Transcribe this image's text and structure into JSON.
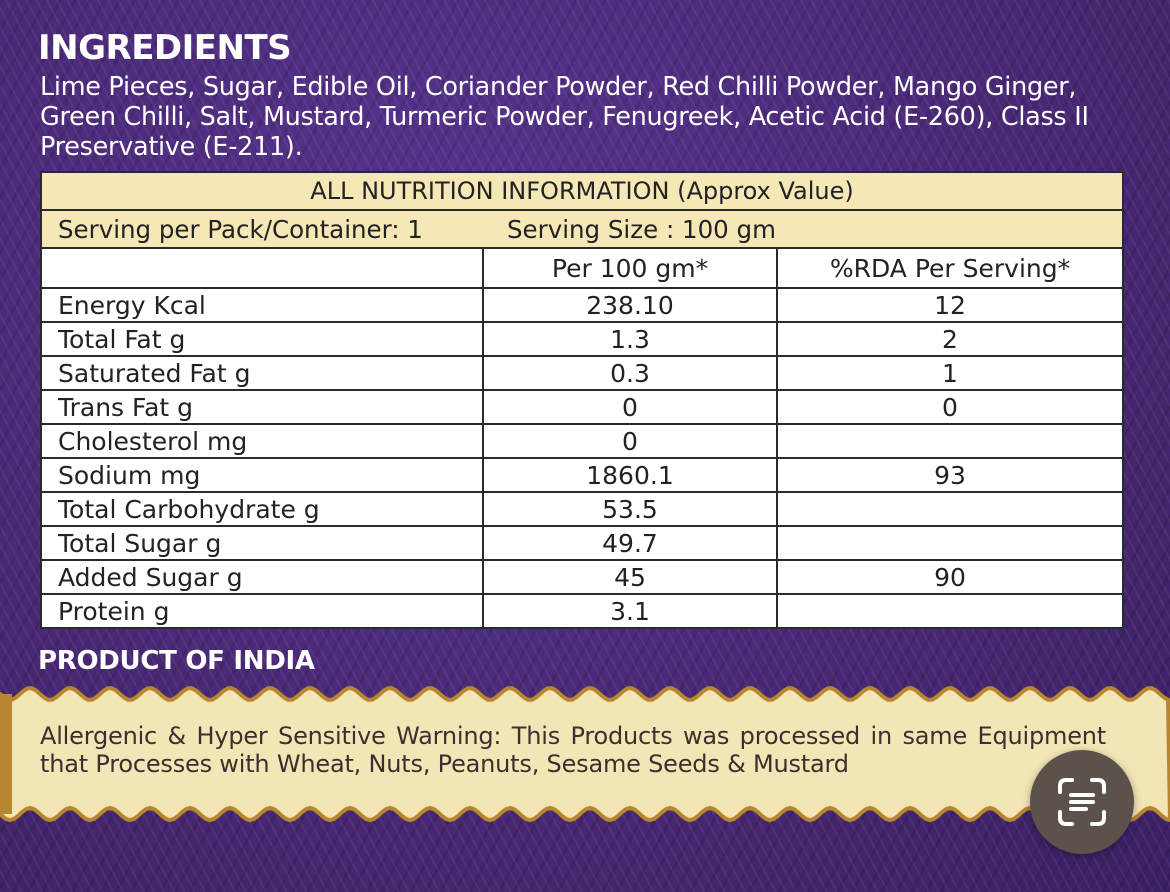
{
  "ingredients": {
    "title": "INGREDIENTS",
    "text": "Lime Pieces, Sugar, Edible Oil, Coriander Powder, Red Chilli Powder, Mango Ginger, Green Chilli, Salt, Mustard, Turmeric Powder, Fenugreek, Acetic Acid (E-260), Class II Preservative (E-211)."
  },
  "nutrition": {
    "title": "ALL NUTRITION INFORMATION (Approx Value)",
    "serving_per_pack": "Serving per Pack/Container: 1",
    "serving_size": "Serving Size : 100 gm",
    "columns": [
      "",
      "Per 100 gm*",
      "%RDA Per Serving*"
    ],
    "rows": [
      {
        "nutrient": "Energy Kcal",
        "per100": "238.10",
        "rda": "12"
      },
      {
        "nutrient": "Total Fat g",
        "per100": "1.3",
        "rda": "2"
      },
      {
        "nutrient": "Saturated Fat g",
        "per100": "0.3",
        "rda": "1"
      },
      {
        "nutrient": "Trans Fat g",
        "per100": "0",
        "rda": "0"
      },
      {
        "nutrient": "Cholesterol mg",
        "per100": "0",
        "rda": ""
      },
      {
        "nutrient": "Sodium mg",
        "per100": "1860.1",
        "rda": "93"
      },
      {
        "nutrient": "Total Carbohydrate g",
        "per100": "53.5",
        "rda": ""
      },
      {
        "nutrient": "Total Sugar g",
        "per100": "49.7",
        "rda": ""
      },
      {
        "nutrient": "Added Sugar g",
        "per100": "45",
        "rda": "90"
      },
      {
        "nutrient": "Protein g",
        "per100": "3.1",
        "rda": ""
      }
    ]
  },
  "origin": "PRODUCT OF INDIA",
  "warning": "Allergenic & Hyper Sensitive Warning: This Products was processed in same Equipment that Processes with Wheat, Nuts, Peanuts, Sesame Seeds & Mustard",
  "colors": {
    "background": "#4a2a78",
    "table_header": "#f6e7b7",
    "banner": "#f3e6b6",
    "banner_border": "#b8862f",
    "scan_button": "#5b524b"
  },
  "icons": {
    "scan_button": "text-scan-icon"
  }
}
